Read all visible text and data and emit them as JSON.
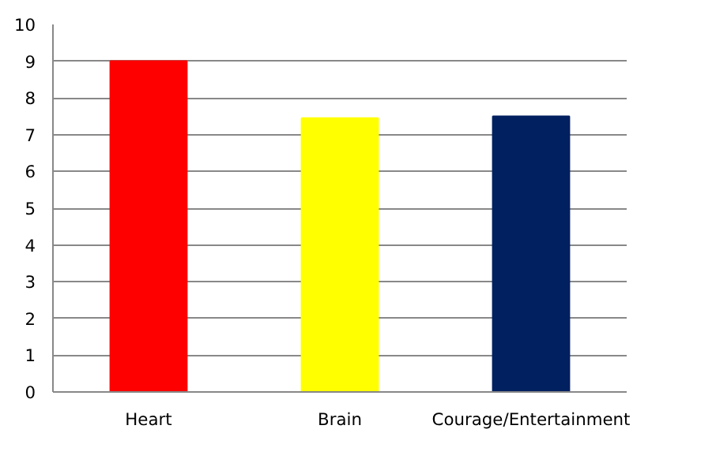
{
  "chart_data": {
    "type": "bar",
    "categories": [
      "Heart",
      "Brain",
      "Courage/Entertainment"
    ],
    "values": [
      9,
      7.45,
      7.5
    ],
    "colors": [
      "#ff0000",
      "#ffff00",
      "#002060"
    ],
    "ylim": [
      0,
      10
    ],
    "yticks": [
      0,
      1,
      2,
      3,
      4,
      5,
      6,
      7,
      8,
      9,
      10
    ],
    "grid": "y"
  }
}
